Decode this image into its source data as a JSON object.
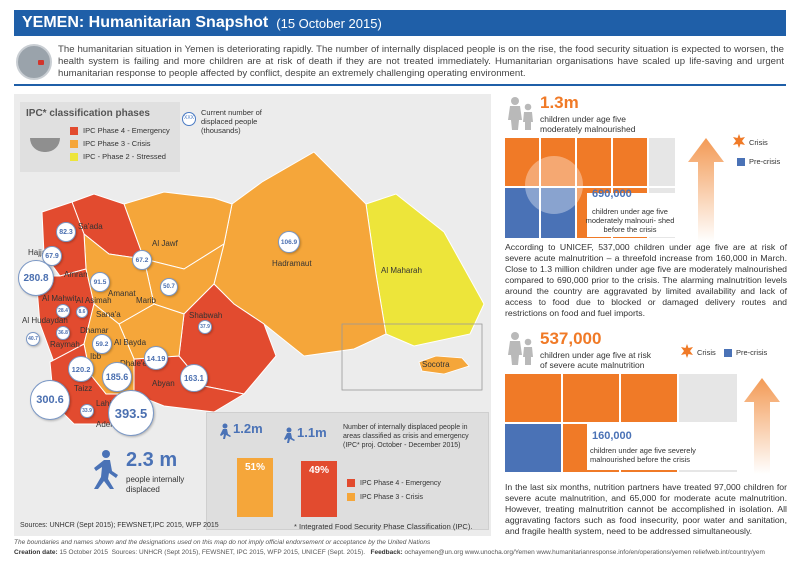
{
  "header": {
    "title_country": "YEMEN:",
    "title_rest": " Humanitarian Snapshot",
    "date": "(15 October 2015)"
  },
  "intro": "The humanitarian situation in Yemen is deteriorating rapidly. The number of internally displaced people is on the rise, the food security situation is expected to worsen, the health system is failing and more children are at risk of death if they are not treated immediately. Humanitarian organisations have scaled up life-saving and urgent humanitarian response to people affected by conflict, despite an extremely challenging operating environment.",
  "legend": {
    "title": "IPC* classification phases",
    "phases": [
      {
        "label": "IPC Phase 4 - Emergency",
        "color": "#e24b2f"
      },
      {
        "label": "IPC Phase 3 - Crisis",
        "color": "#f5a63a"
      },
      {
        "label": "IPC - Phase 2 - Stressed",
        "color": "#ede53a"
      }
    ],
    "bubble_sample": "XXX",
    "bubble_label": "Current number of displaced people (thousands)"
  },
  "governorates": [
    {
      "name": "Sa'ada"
    },
    {
      "name": "Hajjah"
    },
    {
      "name": "Amran"
    },
    {
      "name": "Al Jawf"
    },
    {
      "name": "Hadramaut"
    },
    {
      "name": "Al Maharah"
    },
    {
      "name": "Al Mahwit"
    },
    {
      "name": "Al Asimah"
    },
    {
      "name": "Amanat"
    },
    {
      "name": "Sana'a"
    },
    {
      "name": "Marib"
    },
    {
      "name": "Al Hudaydah"
    },
    {
      "name": "Dhamar"
    },
    {
      "name": "Raymah"
    },
    {
      "name": "Shabwah"
    },
    {
      "name": "Al Bayda"
    },
    {
      "name": "Ibb"
    },
    {
      "name": "Dhale'e"
    },
    {
      "name": "Abyan"
    },
    {
      "name": "Taizz"
    },
    {
      "name": "Lahj"
    },
    {
      "name": "Aden"
    },
    {
      "name": "Socotra"
    }
  ],
  "bubbles": [
    "82.3",
    "67.9",
    "280.8",
    "91.5",
    "67.2",
    "106.9",
    "50.7",
    "28.4",
    "8.6",
    "40.7",
    "36.8",
    "59.2",
    "120.2",
    "185.6",
    "14.19",
    "163.1",
    "37.9",
    "300.6",
    "33.9",
    "393.5"
  ],
  "displaced": {
    "value": "2.3 m",
    "label": "people internally displaced"
  },
  "ipc_box": {
    "stat1": "1.2m",
    "stat2": "1.1m",
    "pct_crisis": 51,
    "pct_emergency": 49,
    "pct_crisis_label": "51%",
    "pct_emergency_label": "49%",
    "title": "Number of internally displaced people in areas classified as crisis and emergency (IPC* proj. October - December 2015)",
    "leg_emergency": "IPC Phase 4 - Emergency",
    "leg_crisis": "IPC Phase 3 - Crisis"
  },
  "sources": "Sources: UNHCR (Sept 2015); FEWSNET,IPC 2015, WFP 2015",
  "ipc_note": "* Integrated Food Security Phase Classification (IPC).",
  "mam": {
    "value": "1.3m",
    "label": "children under age five moderately malnourished",
    "legend_crisis": "Crisis",
    "legend_precrisis": "Pre-crisis",
    "pre_value": "690,000",
    "pre_label": "children under age five moderately malnouri- shed before the crisis"
  },
  "para1": "According to UNICEF, 537,000 children under age five are at risk of severe acute malnutrition – a threefold increase from 160,000 in March. Close to 1.3 million children under age five are moderately malnourished compared to 690,000 prior to the crisis. The alarming malnutrition levels around the country are aggravated by limited availability and lack of access to food due to blocked or damaged delivery routes and restrictions on food and fuel imports.",
  "sam": {
    "value": "537,000",
    "label": "children under age five at risk of severe acute malnutrition",
    "legend_crisis": "Crisis",
    "legend_precrisis": "Pre-crisis",
    "pre_value": "160,000",
    "pre_label": "children under age five severely malnourished before the crisis"
  },
  "para2": "In the last six months, nutrition partners have treated 97,000 children for severe acute malnutrition, and 65,000 for moderate acute malnutrition. However, treating malnutrition cannot be accomplished in isolation. All aggravating factors such as food insecurity, poor water and sanitation, and fragile health system, need to be addressed simultaneously.",
  "footer": {
    "disclaimer": "The boundaries and names shown and the designations used on this map do not imply official endorsement or acceptance by the United Nations",
    "creation_label": "Creation date:",
    "creation": "15 October 2015",
    "sources": "Sources: UNHCR (Sept 2015), FEWSNET, IPC 2015, WFP 2015, UNICEF (Sept. 2015).",
    "feedback_label": "Feedback:",
    "feedback": "ochayemen@un.org   www.unocha.org/Yemen   www.humanitarianresponse.info/en/operations/yemen   reliefweb.int/country/yem"
  },
  "colors": {
    "emergency": "#e24b2f",
    "crisis": "#f5a63a",
    "stressed": "#ede53a",
    "accent": "#1f5fa8",
    "orange": "#f07a27",
    "blue": "#4a72b6"
  }
}
